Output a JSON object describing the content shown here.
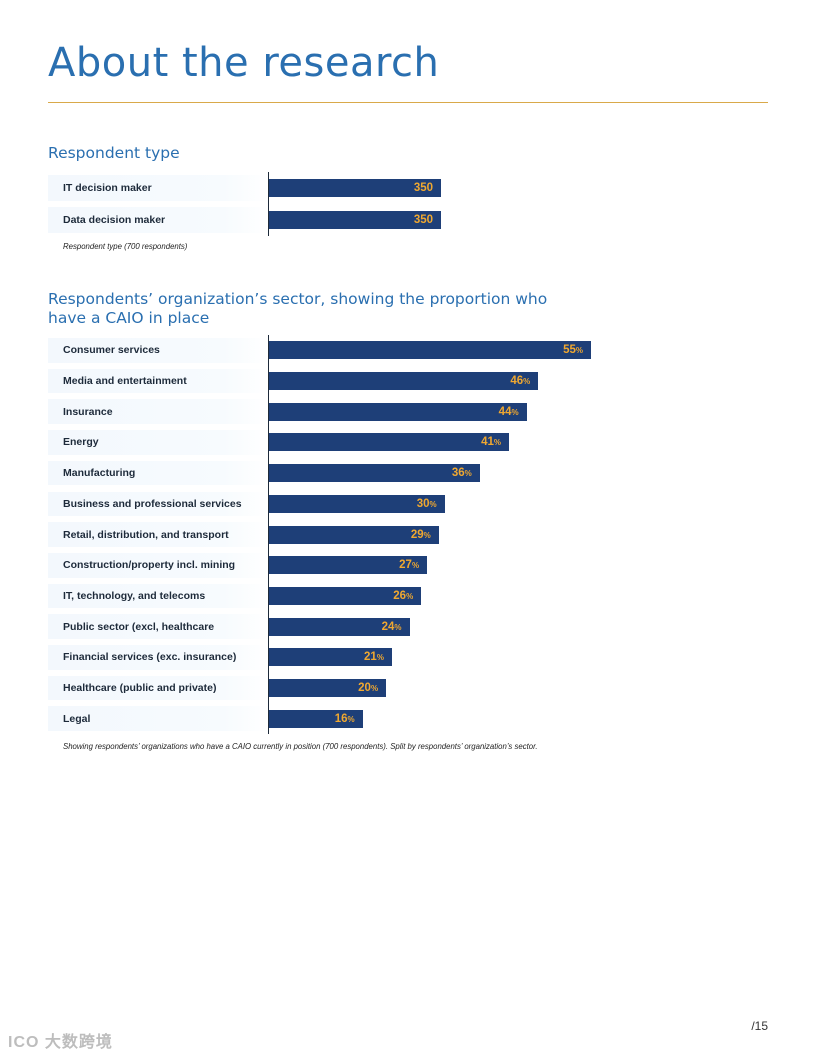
{
  "page": {
    "title": "About the research",
    "page_number": "/15",
    "watermark": "ICO 大数跨境"
  },
  "colors": {
    "title_blue": "#2a6fb0",
    "bar_navy": "#1e3f78",
    "value_orange": "#f0a830",
    "rule_gold": "#d9a94a"
  },
  "sections": {
    "respondent": {
      "title": "Respondent type",
      "note": "Respondent type (700 respondents)"
    },
    "sector": {
      "title_line1": "Respondents’ organization’s sector, showing the proportion who",
      "title_line2": "have a CAIO in place",
      "note": "Showing  respondents’ organizations who have a CAIO currently in position (700 respondents). Split by respondents’ organization’s sector."
    }
  },
  "chart_data": [
    {
      "type": "bar",
      "orientation": "horizontal",
      "title": "Respondent type",
      "categories": [
        "IT decision maker",
        "Data decision maker"
      ],
      "values": [
        350,
        350
      ],
      "value_suffix": "",
      "scale_max": 350
    },
    {
      "type": "bar",
      "orientation": "horizontal",
      "title": "Respondents’ organization’s sector, showing the proportion who have a CAIO in place",
      "categories": [
        "Consumer services",
        "Media and entertainment",
        "Insurance",
        "Energy",
        "Manufacturing",
        "Business and professional services",
        "Retail, distribution, and transport",
        "Construction/property incl. mining",
        "IT, technology, and telecoms",
        "Public sector (excl, healthcare",
        "Financial services (exc. insurance)",
        "Healthcare (public and private)",
        "Legal"
      ],
      "values": [
        55,
        46,
        44,
        41,
        36,
        30,
        29,
        27,
        26,
        24,
        21,
        20,
        16
      ],
      "value_suffix": "%",
      "scale_max": 55
    }
  ]
}
